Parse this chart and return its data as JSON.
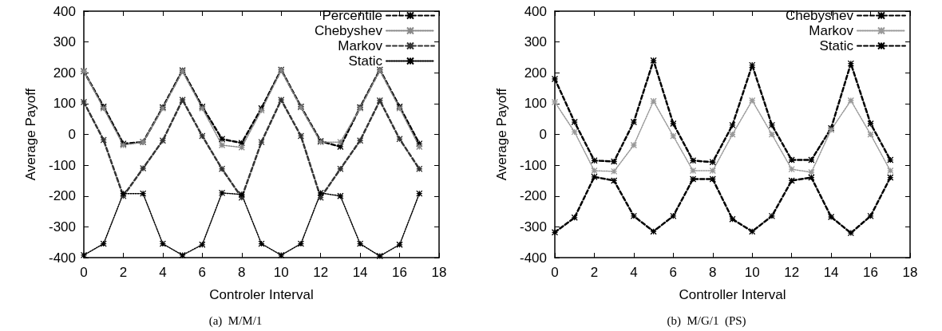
{
  "chart_data": [
    {
      "type": "line",
      "xlabel": "Controler Interval",
      "ylabel": "Average Payoff",
      "annotations": [
        "(a)  M/M/1"
      ],
      "x": [
        0,
        1,
        2,
        3,
        4,
        5,
        6,
        7,
        8,
        9,
        10,
        11,
        12,
        13,
        14,
        15,
        16,
        17
      ],
      "xlim": [
        0,
        18
      ],
      "xticks": [
        0,
        2,
        4,
        6,
        8,
        10,
        12,
        14,
        16,
        18
      ],
      "ylim": [
        -400,
        400
      ],
      "yticks": [
        -400,
        -300,
        -200,
        -100,
        0,
        100,
        200,
        300,
        400
      ],
      "grid": false,
      "legend": "top right",
      "marker": "cross",
      "series": [
        {
          "name": "Percentile",
          "color": "#000000",
          "line_style": "dashed",
          "values": [
            205,
            90,
            -30,
            -25,
            88,
            208,
            90,
            -15,
            -28,
            85,
            210,
            90,
            -22,
            -40,
            88,
            210,
            90,
            -30
          ]
        },
        {
          "name": "Chebyshev",
          "color": "#888888",
          "line_style": "dotted",
          "values": [
            205,
            85,
            -35,
            -25,
            85,
            205,
            85,
            -35,
            -42,
            78,
            208,
            88,
            -25,
            -25,
            85,
            208,
            85,
            -40
          ]
        },
        {
          "name": "Markov",
          "color": "#333333",
          "line_style": "dashed",
          "values": [
            105,
            -18,
            -200,
            -110,
            -20,
            112,
            -5,
            -112,
            -205,
            -25,
            112,
            -5,
            -205,
            -112,
            -20,
            110,
            -15,
            -112
          ]
        },
        {
          "name": "Static",
          "color": "#000000",
          "line_style": "dotted",
          "values": [
            -392,
            -355,
            -192,
            -192,
            -355,
            -392,
            -358,
            -190,
            -195,
            -355,
            -392,
            -355,
            -190,
            -200,
            -355,
            -395,
            -358,
            -192
          ]
        }
      ]
    },
    {
      "type": "line",
      "xlabel": "Controller Interval",
      "ylabel": "Average Payoff",
      "annotations": [
        "(b)  M/G/1  (PS)"
      ],
      "x": [
        0,
        1,
        2,
        3,
        4,
        5,
        6,
        7,
        8,
        9,
        10,
        11,
        12,
        13,
        14,
        15,
        16,
        17
      ],
      "xlim": [
        0,
        18
      ],
      "xticks": [
        0,
        2,
        4,
        6,
        8,
        10,
        12,
        14,
        16,
        18
      ],
      "ylim": [
        -400,
        400
      ],
      "yticks": [
        -400,
        -300,
        -200,
        -100,
        0,
        100,
        200,
        300,
        400
      ],
      "grid": false,
      "legend": "top right",
      "marker": "cross",
      "series": [
        {
          "name": "Chebyshev",
          "color": "#000000",
          "line_style": "dashed",
          "values": [
            180,
            40,
            -85,
            -88,
            40,
            240,
            35,
            -85,
            -90,
            30,
            225,
            30,
            -83,
            -83,
            20,
            230,
            35,
            -83
          ]
        },
        {
          "name": "Markov",
          "color": "#999999",
          "line_style": "dotted",
          "values": [
            105,
            8,
            -118,
            -120,
            -35,
            108,
            -5,
            -118,
            -118,
            0,
            110,
            0,
            -113,
            -123,
            15,
            110,
            0,
            -118
          ]
        },
        {
          "name": "Static",
          "color": "#000000",
          "line_style": "dashed",
          "values": [
            -318,
            -270,
            -138,
            -150,
            -265,
            -315,
            -265,
            -145,
            -145,
            -275,
            -315,
            -265,
            -150,
            -140,
            -268,
            -320,
            -265,
            -140
          ]
        }
      ]
    }
  ]
}
